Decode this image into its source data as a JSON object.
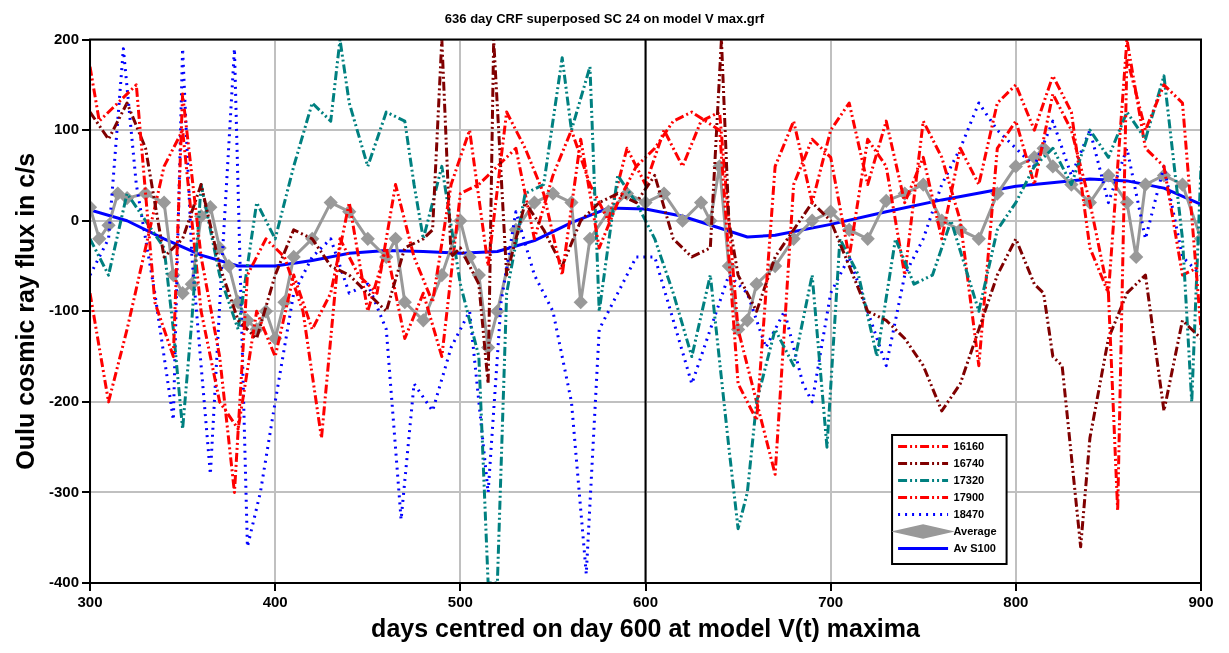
{
  "chart_data": {
    "type": "line",
    "title": "636 day CRF superposed SC 24 on model V max.grf",
    "xlabel": "days centred on day 600 at model V(t) maxima",
    "ylabel": "Oulu cosmic ray flux in c/s",
    "xlim": [
      300,
      900
    ],
    "xticks": [
      300,
      400,
      500,
      600,
      700,
      800,
      900
    ],
    "ylim": [
      -400,
      200
    ],
    "yticks": [
      -400,
      -300,
      -200,
      -100,
      0,
      100,
      200
    ],
    "grid": true,
    "legend": "bottom",
    "ref_lines": [
      {
        "axis": "x",
        "value": 600,
        "color": "#000000",
        "line_style": "solid"
      }
    ],
    "series": [
      {
        "name": "16160",
        "color": "#ff0000",
        "line_style": "dashed",
        "marker": "none",
        "x": [
          300,
          305,
          315,
          325,
          335,
          345,
          350,
          360,
          370,
          378,
          385,
          395,
          405,
          415,
          425,
          435,
          445,
          455,
          465,
          475,
          485,
          495,
          505,
          515,
          525,
          535,
          545,
          555,
          565,
          575,
          585,
          595,
          605,
          615,
          625,
          640,
          650,
          660,
          670,
          680,
          690,
          700,
          710,
          720,
          730,
          740,
          750,
          760,
          770,
          780,
          790,
          800,
          810,
          820,
          830,
          840,
          850,
          855,
          860,
          870,
          880,
          890,
          900
        ],
        "values": [
          170,
          110,
          130,
          150,
          -90,
          -150,
          140,
          -40,
          -150,
          -300,
          -60,
          -20,
          -40,
          -100,
          -240,
          -20,
          -60,
          -80,
          40,
          -40,
          -90,
          40,
          100,
          -50,
          120,
          80,
          30,
          -60,
          90,
          -30,
          20,
          60,
          80,
          110,
          120,
          100,
          -180,
          -220,
          60,
          110,
          20,
          100,
          130,
          40,
          110,
          20,
          70,
          -20,
          80,
          40,
          130,
          150,
          100,
          160,
          120,
          -30,
          -80,
          -320,
          180,
          100,
          150,
          130,
          -120
        ]
      },
      {
        "name": "16740",
        "color": "#800000",
        "line_style": "dashed",
        "marker": "none",
        "x": [
          300,
          310,
          320,
          330,
          340,
          350,
          360,
          370,
          380,
          390,
          400,
          410,
          420,
          430,
          440,
          450,
          460,
          470,
          480,
          485,
          490,
          495,
          500,
          510,
          515,
          518,
          525,
          535,
          545,
          555,
          565,
          575,
          585,
          595,
          605,
          615,
          625,
          635,
          641,
          645,
          650,
          660,
          670,
          680,
          690,
          700,
          710,
          720,
          730,
          740,
          750,
          760,
          770,
          780,
          790,
          800,
          810,
          815,
          820,
          825,
          835,
          840,
          850,
          860,
          870,
          880,
          890,
          900
        ],
        "values": [
          120,
          90,
          130,
          80,
          -40,
          -20,
          40,
          -50,
          -110,
          -130,
          -60,
          -10,
          -20,
          -50,
          -60,
          -80,
          -100,
          -30,
          -20,
          -10,
          200,
          -40,
          -30,
          -70,
          -180,
          200,
          -60,
          20,
          -10,
          -50,
          0,
          20,
          30,
          20,
          50,
          -20,
          -40,
          -30,
          200,
          0,
          -60,
          -100,
          -40,
          -10,
          20,
          0,
          -50,
          -100,
          -110,
          -130,
          -160,
          -210,
          -180,
          -120,
          -60,
          -20,
          -70,
          -80,
          -150,
          -160,
          -360,
          -240,
          -130,
          -80,
          -60,
          -210,
          -110,
          -130
        ]
      },
      {
        "name": "17320",
        "color": "#008080",
        "line_style": "dashed",
        "marker": "none",
        "x": [
          300,
          310,
          320,
          330,
          340,
          345,
          350,
          355,
          360,
          370,
          380,
          390,
          400,
          410,
          420,
          430,
          435,
          440,
          450,
          460,
          470,
          475,
          480,
          490,
          500,
          510,
          515,
          520,
          525,
          535,
          545,
          555,
          560,
          570,
          575,
          585,
          595,
          605,
          615,
          625,
          635,
          645,
          650,
          655,
          660,
          670,
          680,
          690,
          698,
          705,
          715,
          725,
          735,
          745,
          755,
          765,
          780,
          790,
          800,
          810,
          820,
          830,
          840,
          850,
          860,
          870,
          880,
          890,
          895,
          900
        ],
        "values": [
          -20,
          -60,
          30,
          0,
          -30,
          -120,
          -230,
          -110,
          40,
          -60,
          -120,
          20,
          -20,
          60,
          130,
          110,
          200,
          130,
          60,
          120,
          110,
          40,
          -20,
          60,
          -70,
          -150,
          -400,
          -400,
          -80,
          30,
          40,
          180,
          100,
          170,
          -100,
          50,
          20,
          -20,
          -80,
          -150,
          -60,
          -250,
          -340,
          -300,
          -200,
          -120,
          -160,
          -60,
          -250,
          -20,
          -60,
          -150,
          -20,
          -70,
          -60,
          0,
          -100,
          -10,
          20,
          60,
          80,
          40,
          100,
          70,
          120,
          90,
          160,
          -20,
          -200,
          60
        ]
      },
      {
        "name": "17900",
        "color": "#ff0000",
        "line_style": "dashed",
        "marker": "none",
        "x": [
          300,
          310,
          320,
          330,
          340,
          350,
          360,
          370,
          380,
          390,
          400,
          410,
          420,
          430,
          440,
          450,
          460,
          470,
          480,
          490,
          500,
          510,
          520,
          530,
          540,
          550,
          560,
          570,
          580,
          590,
          600,
          610,
          620,
          630,
          640,
          650,
          660,
          670,
          680,
          690,
          700,
          710,
          720,
          730,
          740,
          750,
          760,
          770,
          780,
          790,
          800,
          810,
          820,
          830,
          840,
          850,
          860,
          870,
          880,
          890,
          900
        ],
        "values": [
          -80,
          -200,
          -120,
          -30,
          60,
          100,
          -100,
          -200,
          -230,
          -100,
          -150,
          -60,
          -120,
          -80,
          20,
          -100,
          -30,
          -130,
          -80,
          -150,
          30,
          40,
          60,
          80,
          -20,
          50,
          100,
          40,
          0,
          80,
          40,
          100,
          60,
          110,
          120,
          -120,
          -200,
          -280,
          40,
          90,
          70,
          -40,
          90,
          60,
          -60,
          110,
          70,
          0,
          -160,
          80,
          110,
          40,
          140,
          100,
          20,
          -80,
          200,
          80,
          60,
          -60,
          -50
        ]
      },
      {
        "name": "18470",
        "color": "#0000ff",
        "line_style": "dotted",
        "marker": "none",
        "x": [
          300,
          310,
          318,
          325,
          335,
          345,
          350,
          355,
          365,
          372,
          378,
          385,
          392,
          400,
          410,
          420,
          430,
          440,
          450,
          460,
          468,
          475,
          485,
          495,
          505,
          515,
          522,
          530,
          540,
          550,
          560,
          568,
          575,
          585,
          595,
          605,
          615,
          625,
          635,
          645,
          655,
          665,
          675,
          685,
          690,
          700,
          710,
          720,
          730,
          740,
          750,
          760,
          770,
          780,
          790,
          800,
          810,
          820,
          830,
          840,
          850,
          860,
          870,
          880,
          890,
          900
        ],
        "values": [
          -60,
          -20,
          190,
          40,
          -80,
          -220,
          190,
          -40,
          -280,
          -20,
          190,
          -360,
          -300,
          -200,
          -80,
          -40,
          -20,
          -80,
          -70,
          -120,
          -330,
          -180,
          -210,
          -140,
          -100,
          -300,
          -90,
          10,
          -60,
          -100,
          -200,
          -390,
          -120,
          -80,
          -40,
          -40,
          -110,
          -180,
          -120,
          -60,
          -80,
          -140,
          -100,
          -180,
          -200,
          -80,
          -40,
          -100,
          -160,
          -60,
          -20,
          40,
          80,
          130,
          100,
          80,
          60,
          110,
          50,
          100,
          20,
          80,
          -20,
          60,
          -40,
          -60
        ]
      },
      {
        "name": "Average",
        "color": "#999999",
        "line_style": "solid",
        "marker": "diamond",
        "x": [
          300,
          305,
          310,
          315,
          320,
          330,
          340,
          345,
          350,
          355,
          360,
          365,
          370,
          375,
          380,
          385,
          390,
          395,
          400,
          405,
          410,
          420,
          430,
          440,
          450,
          460,
          465,
          470,
          480,
          490,
          500,
          505,
          510,
          515,
          520,
          530,
          540,
          550,
          560,
          565,
          570,
          580,
          590,
          600,
          610,
          620,
          630,
          635,
          640,
          645,
          650,
          655,
          660,
          670,
          680,
          690,
          700,
          710,
          720,
          730,
          740,
          750,
          760,
          770,
          780,
          790,
          800,
          810,
          815,
          820,
          830,
          840,
          850,
          860,
          865,
          870,
          880,
          890,
          900
        ],
        "values": [
          15,
          -20,
          -5,
          30,
          25,
          30,
          20,
          -60,
          -80,
          -70,
          5,
          15,
          -30,
          -50,
          -90,
          -110,
          -120,
          -100,
          -130,
          -90,
          -40,
          -20,
          20,
          10,
          -20,
          -40,
          -20,
          -90,
          -110,
          -60,
          0,
          -40,
          -60,
          -140,
          -100,
          -10,
          20,
          30,
          20,
          -90,
          -20,
          10,
          30,
          20,
          30,
          0,
          20,
          0,
          60,
          -50,
          -120,
          -110,
          -70,
          -50,
          -20,
          0,
          10,
          -10,
          -20,
          22,
          30,
          40,
          0,
          -10,
          -20,
          30,
          60,
          70,
          80,
          60,
          40,
          20,
          50,
          20,
          -40,
          40,
          50,
          40,
          -20
        ]
      },
      {
        "name": "Av S100",
        "color": "#0000ff",
        "line_style": "solid",
        "marker": "none",
        "x": [
          300,
          320,
          340,
          360,
          380,
          400,
          420,
          440,
          460,
          480,
          500,
          520,
          540,
          560,
          580,
          600,
          620,
          640,
          655,
          670,
          700,
          730,
          760,
          800,
          840,
          860,
          880,
          900
        ],
        "values": [
          12,
          0,
          -20,
          -38,
          -50,
          -50,
          -44,
          -36,
          -33,
          -34,
          -36,
          -34,
          -22,
          -2,
          14,
          13,
          5,
          -8,
          -18,
          -16,
          -4,
          10,
          23,
          38,
          46,
          44,
          36,
          18
        ]
      }
    ]
  }
}
